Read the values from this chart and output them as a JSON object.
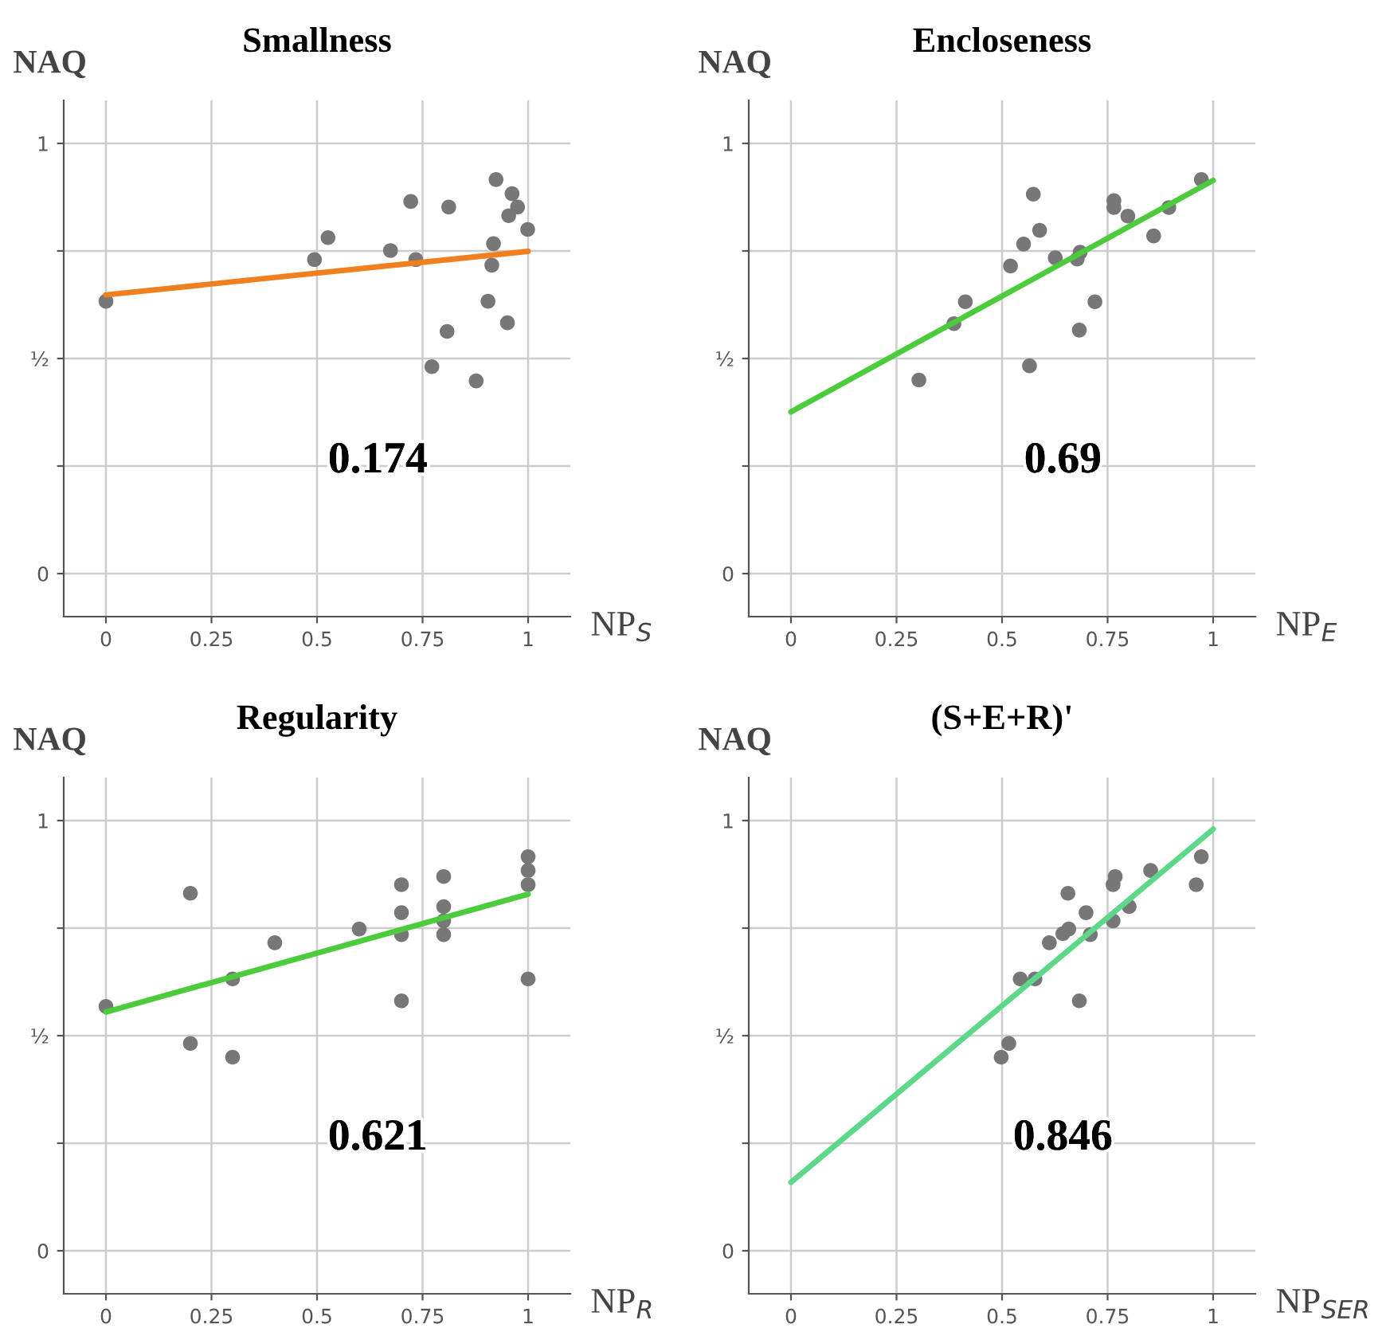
{
  "chart_data": [
    {
      "type": "scatter",
      "title": "Smallness",
      "xlabel": "NP$_{S}$",
      "ylabel": "NAQ",
      "annotations": [
        "0.174"
      ],
      "xlim": [
        -0.1,
        1.1
      ],
      "ylim": [
        -0.1,
        1.1
      ],
      "xticks": [
        0,
        0.25,
        0.5,
        0.75,
        1
      ],
      "yticks": [
        0,
        {
          "value": 0.25,
          "label": null
        },
        {
          "value": 0.5,
          "label": "½"
        },
        {
          "value": 0.75,
          "label": null
        },
        1
      ],
      "grid": true,
      "marker": "circle",
      "series": [
        {
          "color": "#777777",
          "x": [
            0,
            0.494,
            0.526,
            0.674,
            0.722,
            0.734,
            0.812,
            0.772,
            0.808,
            0.877,
            0.924,
            0.918,
            0.914,
            0.905,
            0.951,
            0.962,
            0.975,
            0.954,
            0.999
          ],
          "values": [
            0.633,
            0.73,
            0.781,
            0.751,
            0.865,
            0.73,
            0.852,
            0.481,
            0.563,
            0.448,
            0.916,
            0.767,
            0.717,
            0.633,
            0.583,
            0.883,
            0.852,
            0.832,
            0.8
          ]
        },
        {
          "type": "line",
          "color": "#f07f1f",
          "marker": "none",
          "line_style": "solid",
          "x": [
            0,
            1
          ],
          "values": [
            0.648,
            0.749
          ]
        }
      ]
    },
    {
      "type": "scatter",
      "title": "Encloseness",
      "xlabel": "NP$_{E}$",
      "ylabel": "NAQ",
      "annotations": [
        "0.69"
      ],
      "xlim": [
        -0.1,
        1.1
      ],
      "ylim": [
        -0.1,
        1.1
      ],
      "xticks": [
        0,
        0.25,
        0.5,
        0.75,
        1
      ],
      "yticks": [
        0,
        {
          "value": 0.25,
          "label": null
        },
        {
          "value": 0.5,
          "label": "½"
        },
        {
          "value": 0.75,
          "label": null
        },
        1
      ],
      "grid": true,
      "marker": "circle",
      "series": [
        {
          "color": "#777777",
          "x": [
            0.303,
            0.386,
            0.413,
            0.52,
            0.551,
            0.574,
            0.589,
            0.565,
            0.626,
            0.678,
            0.685,
            0.683,
            0.72,
            0.765,
            0.765,
            0.798,
            0.859,
            0.895,
            0.972
          ],
          "values": [
            0.45,
            0.581,
            0.632,
            0.715,
            0.766,
            0.882,
            0.798,
            0.483,
            0.734,
            0.731,
            0.747,
            0.566,
            0.632,
            0.867,
            0.851,
            0.831,
            0.785,
            0.851,
            0.916
          ]
        },
        {
          "type": "line",
          "color": "#4ccc3c",
          "marker": "none",
          "line_style": "solid",
          "x": [
            0,
            1
          ],
          "values": [
            0.376,
            0.914
          ]
        }
      ]
    },
    {
      "type": "scatter",
      "title": "Regularity",
      "xlabel": "NP$_{R}$",
      "ylabel": "NAQ",
      "annotations": [
        "0.621"
      ],
      "xlim": [
        -0.1,
        1.1
      ],
      "ylim": [
        -0.1,
        1.1
      ],
      "xticks": [
        0,
        0.25,
        0.5,
        0.75,
        1
      ],
      "yticks": [
        0,
        {
          "value": 0.25,
          "label": null
        },
        {
          "value": 0.5,
          "label": "½"
        },
        {
          "value": 0.75,
          "label": null
        },
        1
      ],
      "grid": true,
      "marker": "circle",
      "series": [
        {
          "color": "#777777",
          "x": [
            0,
            0.2,
            0.2,
            0.3,
            0.3,
            0.4,
            0.6,
            0.7,
            0.7,
            0.7,
            0.7,
            0.8,
            0.8,
            0.8,
            0.8,
            1,
            1,
            1,
            1
          ],
          "values": [
            0.568,
            0.831,
            0.482,
            0.632,
            0.45,
            0.716,
            0.748,
            0.851,
            0.786,
            0.735,
            0.581,
            0.87,
            0.8,
            0.767,
            0.735,
            0.916,
            0.884,
            0.851,
            0.632
          ]
        },
        {
          "type": "line",
          "color": "#4ccc3c",
          "marker": "none",
          "line_style": "solid",
          "x": [
            0,
            1
          ],
          "values": [
            0.555,
            0.829
          ]
        }
      ]
    },
    {
      "type": "scatter",
      "title": "(S+E+R)'",
      "xlabel": "NP$_{SER}$",
      "ylabel": "NAQ",
      "annotations": [
        "0.846"
      ],
      "xlim": [
        -0.1,
        1.1
      ],
      "ylim": [
        -0.1,
        1.1
      ],
      "xticks": [
        0,
        0.25,
        0.5,
        0.75,
        1
      ],
      "yticks": [
        0,
        {
          "value": 0.25,
          "label": null
        },
        {
          "value": 0.5,
          "label": "½"
        },
        {
          "value": 0.75,
          "label": null
        },
        1
      ],
      "grid": true,
      "marker": "circle",
      "series": [
        {
          "color": "#777777",
          "x": [
            0.498,
            0.516,
            0.543,
            0.578,
            0.612,
            0.644,
            0.658,
            0.656,
            0.683,
            0.699,
            0.709,
            0.763,
            0.763,
            0.768,
            0.801,
            0.852,
            0.96,
            0.972
          ],
          "values": [
            0.45,
            0.482,
            0.632,
            0.632,
            0.716,
            0.737,
            0.748,
            0.831,
            0.581,
            0.786,
            0.735,
            0.767,
            0.851,
            0.87,
            0.8,
            0.884,
            0.851,
            0.916
          ]
        },
        {
          "type": "line",
          "color": "#5dd88a",
          "marker": "none",
          "line_style": "solid",
          "x": [
            0,
            1
          ],
          "values": [
            0.159,
            0.98
          ]
        }
      ]
    }
  ]
}
